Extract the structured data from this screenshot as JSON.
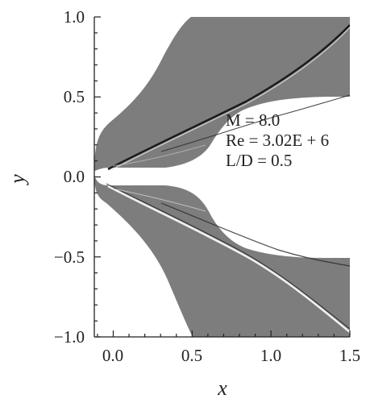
{
  "figure": {
    "x_axis": {
      "label": "x",
      "range": [
        -0.12,
        1.5
      ],
      "ticks": [
        {
          "value": 0.0,
          "label": "0.0"
        },
        {
          "value": 0.5,
          "label": "0.5"
        },
        {
          "value": 1.0,
          "label": "1.0"
        },
        {
          "value": 1.5,
          "label": "1.5"
        }
      ],
      "minor_step": 0.1
    },
    "y_axis": {
      "label": "y",
      "range": [
        -1.0,
        1.0
      ],
      "ticks": [
        {
          "value": 1.0,
          "label": "1.0"
        },
        {
          "value": 0.5,
          "label": "0.5"
        },
        {
          "value": 0.0,
          "label": "0.0"
        },
        {
          "value": -0.5,
          "label": "−0.5"
        },
        {
          "value": -1.0,
          "label": "−1.0"
        }
      ],
      "minor_step": 0.1
    },
    "annotation": {
      "mach": "M = 8.0",
      "reynolds": "Re = 3.02E + 6",
      "length_ratio": "L/D = 0.5"
    },
    "colors": {
      "field": "#7d7d7d",
      "shock_dark": "#1a1a1a",
      "shock_light": "#f0f0f0",
      "frame": "#231f20",
      "background": "#ffffff"
    }
  }
}
